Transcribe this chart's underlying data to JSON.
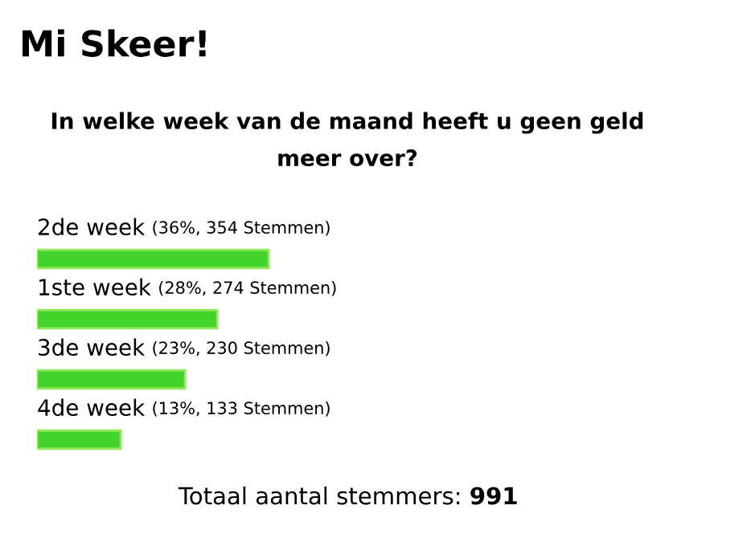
{
  "chart_data": {
    "type": "bar",
    "orientation": "horizontal",
    "title": "Mi Skeer!",
    "subtitle": "In welke week van de maand heeft u geen geld\nmeer over?",
    "categories": [
      "2de week",
      "1ste week",
      "3de week",
      "4de week"
    ],
    "values": [
      36,
      28,
      23,
      13
    ],
    "value_labels": [
      "(36%, 354 Stemmen)",
      "(28%, 274 Stemmen)",
      "(23%, 230 Stemmen)",
      "(13%, 133 Stemmen)"
    ],
    "color": "#42d42a",
    "annotations": [
      "Totaal aantal stemmers: 991"
    ]
  }
}
